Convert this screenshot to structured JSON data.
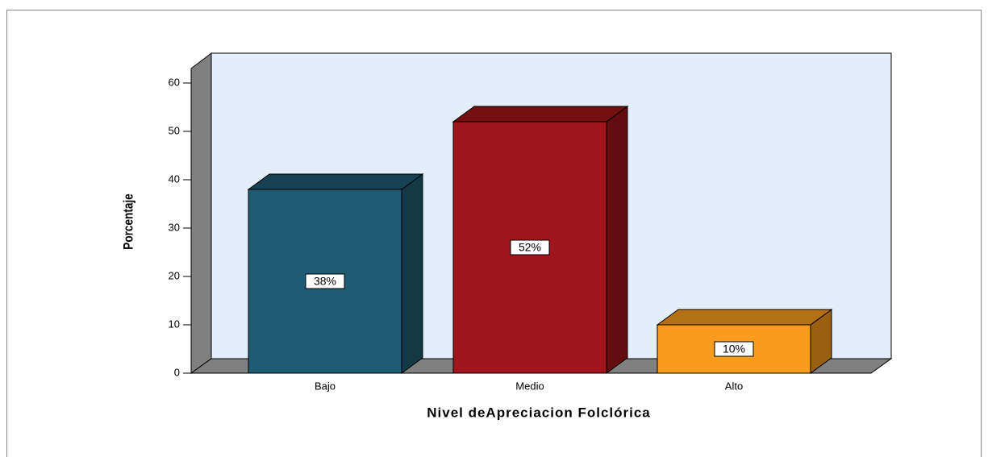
{
  "chart_data": {
    "type": "bar3d",
    "x_label": "Nivel deApreciacion Folclórica",
    "y_label": "Porcentaje",
    "categories": [
      "Bajo",
      "Medio",
      "Alto"
    ],
    "values": [
      38,
      52,
      10
    ],
    "value_labels": [
      "38%",
      "52%",
      "10%"
    ],
    "colors": [
      "#1f5c73",
      "#a0151b",
      "#f99b1c"
    ],
    "ylim": [
      0,
      63
    ],
    "yticks": [
      0,
      10,
      20,
      30,
      40,
      50,
      60
    ]
  }
}
